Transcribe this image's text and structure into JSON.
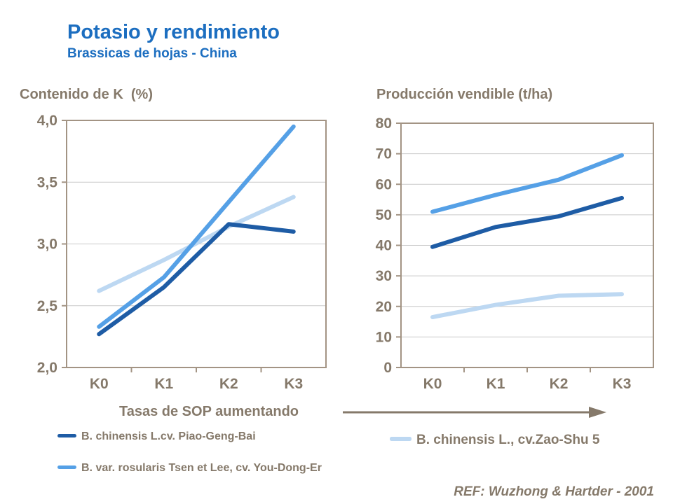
{
  "slide": {
    "title": "Potasio y rendimiento",
    "subtitle": "Brassicas de hojas - China",
    "ref": "REF: Wuzhong & Hartder - 2001"
  },
  "colors": {
    "title_blue": "#1C6EC0",
    "text_brown": "#85796A",
    "dark_blue": "#1E5CA5",
    "medium_blue": "#55A0E6",
    "light_blue": "#BDD8F2",
    "axis": "#A39484",
    "gridline": "#C9C9C9"
  },
  "legend": {
    "left": [
      {
        "label": "B. chinensis L.cv. Piao-Geng-Bai",
        "color": "#1E5CA5"
      },
      {
        "label": "B. var. rosularis Tsen et Lee, cv. You-Dong-Er",
        "color": "#55A0E6"
      }
    ],
    "right": [
      {
        "label": "B. chinensis L., cv.Zao-Shu 5",
        "color": "#BDD8F2"
      }
    ]
  },
  "chart_data": [
    {
      "type": "line",
      "title": "Contenido de K  (%)",
      "xlabel": "Tasas de SOP aumentando",
      "ylabel": "",
      "categories": [
        "K0",
        "K1",
        "K2",
        "K3"
      ],
      "ylim": [
        2.0,
        4.0
      ],
      "grid": true,
      "legend_position": "below",
      "y_ticks": {
        "values": [
          2.0,
          2.5,
          3.0,
          3.5,
          4.0
        ],
        "labels": [
          "2,0",
          "2,5",
          "3,0",
          "3,5",
          "4,0"
        ]
      },
      "series": [
        {
          "name": "B. chinensis L., cv.Zao-Shu 5",
          "color": "#BDD8F2",
          "values": [
            2.62,
            2.87,
            3.14,
            3.38
          ]
        },
        {
          "name": "B. var. rosularis Tsen et Lee, cv. You-Dong-Er",
          "color": "#55A0E6",
          "values": [
            2.33,
            2.73,
            3.34,
            3.95
          ]
        },
        {
          "name": "B. chinensis L.cv. Piao-Geng-Bai",
          "color": "#1E5CA5",
          "values": [
            2.27,
            2.65,
            3.16,
            3.1
          ]
        }
      ]
    },
    {
      "type": "line",
      "title": "Producción vendible (t/ha)",
      "xlabel": "Tasas de SOP aumentando",
      "ylabel": "",
      "categories": [
        "K0",
        "K1",
        "K2",
        "K3"
      ],
      "ylim": [
        0,
        80
      ],
      "grid": true,
      "legend_position": "below",
      "y_ticks": {
        "values": [
          0,
          10,
          20,
          30,
          40,
          50,
          60,
          70,
          80
        ],
        "labels": [
          "0",
          "10",
          "20",
          "30",
          "40",
          "50",
          "60",
          "70",
          "80"
        ]
      },
      "series": [
        {
          "name": "B. chinensis L., cv.Zao-Shu 5",
          "color": "#BDD8F2",
          "values": [
            16.5,
            20.5,
            23.5,
            24
          ]
        },
        {
          "name": "B. var. rosularis Tsen et Lee, cv. You-Dong-Er",
          "color": "#55A0E6",
          "values": [
            51,
            56.5,
            61.5,
            69.5
          ]
        },
        {
          "name": "B. chinensis L.cv. Piao-Geng-Bai",
          "color": "#1E5CA5",
          "values": [
            39.5,
            46,
            49.5,
            55.5
          ]
        }
      ]
    }
  ]
}
